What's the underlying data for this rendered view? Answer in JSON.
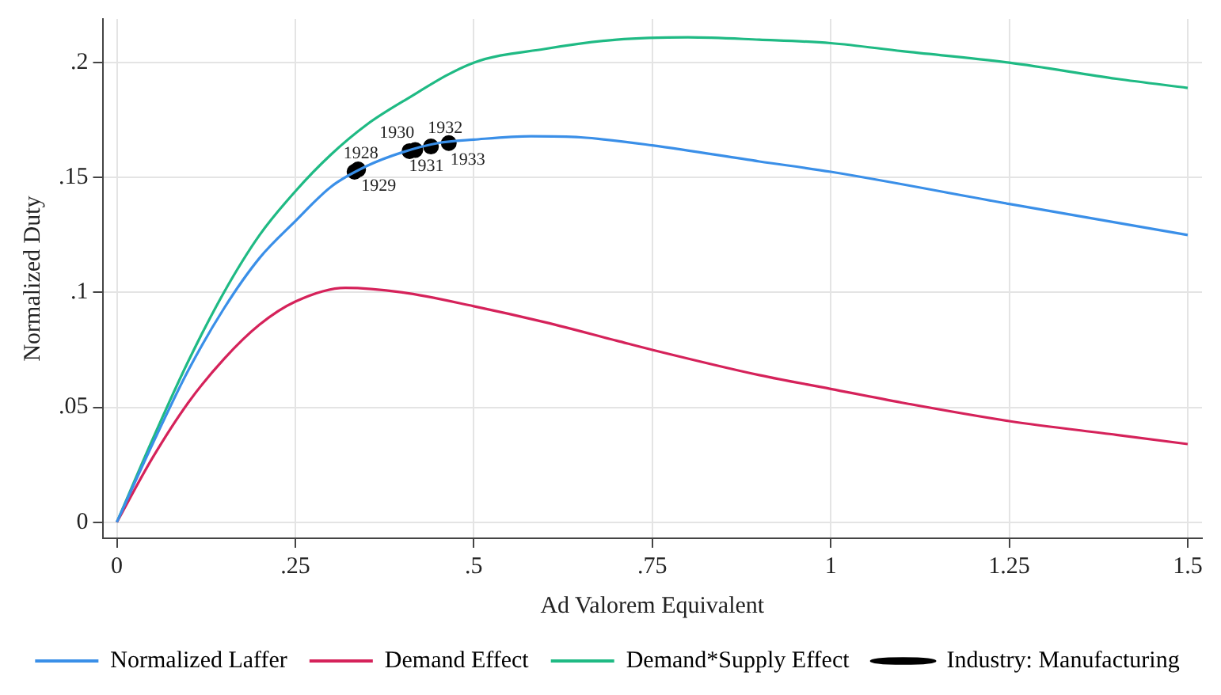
{
  "chart_data": {
    "type": "line",
    "xlabel": "Ad Valorem Equivalent",
    "ylabel": "Normalized Duty",
    "xlim": [
      -0.02,
      1.52
    ],
    "ylim": [
      -0.007,
      0.219
    ],
    "xticks": [
      {
        "value": 0,
        "label": "0"
      },
      {
        "value": 0.25,
        "label": ".25"
      },
      {
        "value": 0.5,
        "label": ".5"
      },
      {
        "value": 0.75,
        "label": ".75"
      },
      {
        "value": 1,
        "label": "1"
      },
      {
        "value": 1.25,
        "label": "1.25"
      },
      {
        "value": 1.5,
        "label": "1.5"
      }
    ],
    "yticks": [
      {
        "value": 0,
        "label": "0"
      },
      {
        "value": 0.05,
        "label": ".05"
      },
      {
        "value": 0.1,
        "label": ".1"
      },
      {
        "value": 0.15,
        "label": ".15"
      },
      {
        "value": 0.2,
        "label": ".2"
      }
    ],
    "grid": true,
    "legend": "bottom",
    "line_style": "solid",
    "series": [
      {
        "name": "Normalized Laffer",
        "color": "#3a8fe8",
        "marker": "none",
        "x": [
          0,
          0.05,
          0.1,
          0.15,
          0.2,
          0.25,
          0.3,
          0.35,
          0.4,
          0.45,
          0.5,
          0.58,
          0.65,
          0.75,
          0.9,
          1,
          1.25,
          1.5
        ],
        "values": [
          0,
          0.034,
          0.066,
          0.093,
          0.115,
          0.131,
          0.146,
          0.155,
          0.161,
          0.165,
          0.1665,
          0.168,
          0.1675,
          0.164,
          0.157,
          0.1525,
          0.1385,
          0.125
        ]
      },
      {
        "name": "Demand Effect",
        "color": "#d5225a",
        "marker": "none",
        "x": [
          0,
          0.05,
          0.1,
          0.15,
          0.2,
          0.25,
          0.32,
          0.4,
          0.5,
          0.6,
          0.7,
          0.75,
          0.9,
          1,
          1.1,
          1.25,
          1.4,
          1.5
        ],
        "values": [
          0,
          0.028,
          0.052,
          0.071,
          0.086,
          0.096,
          0.102,
          0.1,
          0.094,
          0.087,
          0.079,
          0.075,
          0.064,
          0.058,
          0.052,
          0.044,
          0.038,
          0.034
        ]
      },
      {
        "name": "Demand*Supply Effect",
        "color": "#1fba84",
        "marker": "none",
        "x": [
          0,
          0.05,
          0.1,
          0.15,
          0.2,
          0.25,
          0.3,
          0.35,
          0.4,
          0.5,
          0.6,
          0.7,
          0.8,
          0.9,
          1,
          1.1,
          1.25,
          1.4,
          1.5
        ],
        "values": [
          0,
          0.036,
          0.07,
          0.1,
          0.125,
          0.144,
          0.16,
          0.173,
          0.183,
          0.2,
          0.206,
          0.21,
          0.211,
          0.21,
          0.2085,
          0.205,
          0.2,
          0.193,
          0.189
        ]
      },
      {
        "name": "Industry: Manufacturing",
        "type": "scatter",
        "color": "#000000",
        "marker": "circle",
        "x": [
          0.333,
          0.338,
          0.41,
          0.418,
          0.44,
          0.465
        ],
        "values": [
          0.1525,
          0.1535,
          0.1615,
          0.162,
          0.1635,
          0.165
        ]
      }
    ],
    "annotations": [
      {
        "text": "1928",
        "x": 0.333,
        "y": 0.1525
      },
      {
        "text": "1929",
        "x": 0.338,
        "y": 0.1535
      },
      {
        "text": "1930",
        "x": 0.41,
        "y": 0.1615
      },
      {
        "text": "1931",
        "x": 0.418,
        "y": 0.162
      },
      {
        "text": "1932",
        "x": 0.44,
        "y": 0.1635
      },
      {
        "text": "1933",
        "x": 0.465,
        "y": 0.165
      }
    ]
  }
}
